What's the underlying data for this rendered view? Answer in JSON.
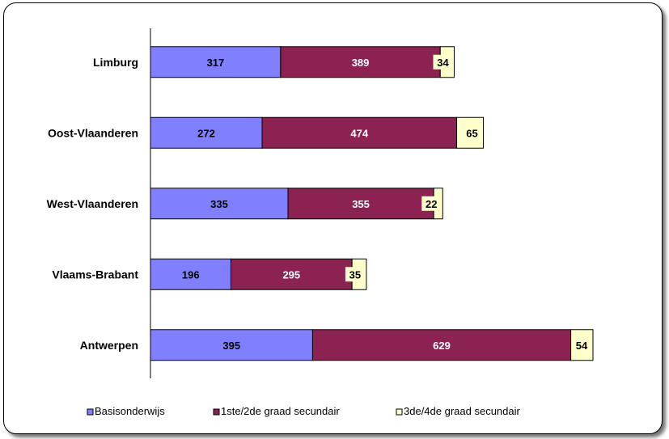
{
  "chart_data": {
    "type": "bar",
    "orientation": "horizontal",
    "stacked": true,
    "categories": [
      "Limburg",
      "Oost-Vlaanderen",
      "West-Vlaanderen",
      "Vlaams-Brabant",
      "Antwerpen"
    ],
    "series": [
      {
        "name": "Basisonderwijs",
        "color": "#8080FF",
        "values": [
          317,
          272,
          335,
          196,
          395
        ]
      },
      {
        "name": "1ste/2de graad secundair",
        "color": "#8B2252",
        "values": [
          389,
          474,
          355,
          295,
          629
        ]
      },
      {
        "name": "3de/4de graad secundair",
        "color": "#FFFFCC",
        "values": [
          34,
          65,
          22,
          35,
          54
        ]
      }
    ],
    "xlim": [
      0,
      1078
    ],
    "grid": false,
    "legend_position": "bottom"
  }
}
